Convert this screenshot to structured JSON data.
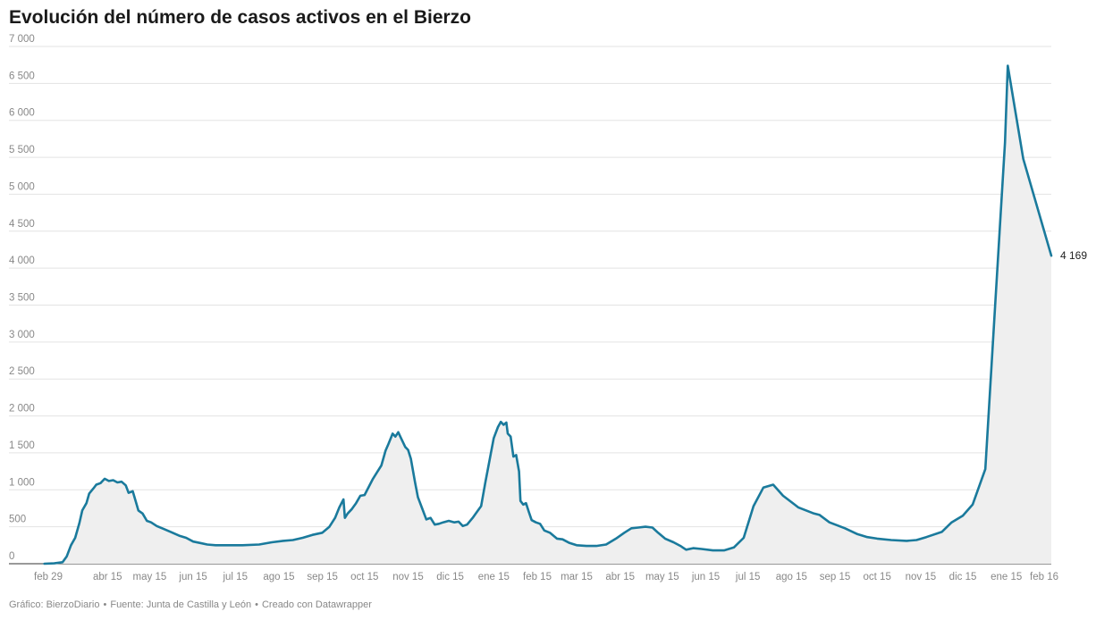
{
  "chart_data": {
    "type": "area",
    "title": "Evolución del número de casos activos en el Bierzo",
    "xlabel": "",
    "ylabel": "",
    "ylim": [
      0,
      7000
    ],
    "yticks": [
      0,
      500,
      1000,
      1500,
      2000,
      2500,
      3000,
      3500,
      4000,
      4500,
      5000,
      5500,
      6000,
      6500,
      7000
    ],
    "ytick_labels": [
      "0",
      "500",
      "1 000",
      "1 500",
      "2 000",
      "2 500",
      "3 000",
      "3 500",
      "4 000",
      "4 500",
      "5 000",
      "5 500",
      "6 000",
      "6 500",
      "7 000"
    ],
    "xlim": [
      "2020-02-29",
      "2022-02-16"
    ],
    "xticks": [
      {
        "date": "2020-02-29",
        "label": "feb 29"
      },
      {
        "date": "2020-04-15",
        "label": "abr 15"
      },
      {
        "date": "2020-05-15",
        "label": "may 15"
      },
      {
        "date": "2020-06-15",
        "label": "jun 15"
      },
      {
        "date": "2020-07-15",
        "label": "jul 15"
      },
      {
        "date": "2020-08-15",
        "label": "ago 15"
      },
      {
        "date": "2020-09-15",
        "label": "sep 15"
      },
      {
        "date": "2020-10-15",
        "label": "oct 15"
      },
      {
        "date": "2020-11-15",
        "label": "nov 15"
      },
      {
        "date": "2020-12-15",
        "label": "dic 15"
      },
      {
        "date": "2021-01-15",
        "label": "ene 15"
      },
      {
        "date": "2021-02-15",
        "label": "feb 15"
      },
      {
        "date": "2021-03-15",
        "label": "mar 15"
      },
      {
        "date": "2021-04-15",
        "label": "abr 15"
      },
      {
        "date": "2021-05-15",
        "label": "may 15"
      },
      {
        "date": "2021-06-15",
        "label": "jun 15"
      },
      {
        "date": "2021-07-15",
        "label": "jul 15"
      },
      {
        "date": "2021-08-15",
        "label": "ago 15"
      },
      {
        "date": "2021-09-15",
        "label": "sep 15"
      },
      {
        "date": "2021-10-15",
        "label": "oct 15"
      },
      {
        "date": "2021-11-15",
        "label": "nov 15"
      },
      {
        "date": "2021-12-15",
        "label": "dic 15"
      },
      {
        "date": "2022-01-15",
        "label": "ene 15"
      },
      {
        "date": "2022-02-16",
        "label": "feb 16"
      }
    ],
    "grid": true,
    "series": [
      {
        "color": "#1a7a9c",
        "fill": "#efefef",
        "end_label": "4 169",
        "points": [
          [
            "2020-03-01",
            0
          ],
          [
            "2020-03-08",
            5
          ],
          [
            "2020-03-14",
            20
          ],
          [
            "2020-03-17",
            100
          ],
          [
            "2020-03-20",
            250
          ],
          [
            "2020-03-23",
            350
          ],
          [
            "2020-03-26",
            550
          ],
          [
            "2020-03-28",
            720
          ],
          [
            "2020-03-31",
            820
          ],
          [
            "2020-04-02",
            950
          ],
          [
            "2020-04-05",
            1020
          ],
          [
            "2020-04-07",
            1070
          ],
          [
            "2020-04-10",
            1090
          ],
          [
            "2020-04-13",
            1150
          ],
          [
            "2020-04-16",
            1120
          ],
          [
            "2020-04-19",
            1130
          ],
          [
            "2020-04-22",
            1100
          ],
          [
            "2020-04-25",
            1110
          ],
          [
            "2020-04-28",
            1060
          ],
          [
            "2020-04-30",
            960
          ],
          [
            "2020-05-03",
            980
          ],
          [
            "2020-05-05",
            850
          ],
          [
            "2020-05-07",
            720
          ],
          [
            "2020-05-10",
            680
          ],
          [
            "2020-05-13",
            580
          ],
          [
            "2020-05-16",
            560
          ],
          [
            "2020-05-20",
            510
          ],
          [
            "2020-05-25",
            470
          ],
          [
            "2020-05-30",
            430
          ],
          [
            "2020-06-05",
            380
          ],
          [
            "2020-06-10",
            350
          ],
          [
            "2020-06-15",
            300
          ],
          [
            "2020-06-20",
            280
          ],
          [
            "2020-06-25",
            260
          ],
          [
            "2020-07-01",
            250
          ],
          [
            "2020-07-10",
            250
          ],
          [
            "2020-07-20",
            250
          ],
          [
            "2020-08-01",
            260
          ],
          [
            "2020-08-10",
            290
          ],
          [
            "2020-08-18",
            310
          ],
          [
            "2020-08-25",
            320
          ],
          [
            "2020-09-01",
            350
          ],
          [
            "2020-09-08",
            390
          ],
          [
            "2020-09-15",
            420
          ],
          [
            "2020-09-20",
            500
          ],
          [
            "2020-09-24",
            620
          ],
          [
            "2020-09-27",
            760
          ],
          [
            "2020-09-30",
            870
          ],
          [
            "2020-10-01",
            620
          ],
          [
            "2020-10-03",
            680
          ],
          [
            "2020-10-06",
            740
          ],
          [
            "2020-10-09",
            820
          ],
          [
            "2020-10-12",
            920
          ],
          [
            "2020-10-15",
            930
          ],
          [
            "2020-10-18",
            1040
          ],
          [
            "2020-10-21",
            1150
          ],
          [
            "2020-10-24",
            1240
          ],
          [
            "2020-10-27",
            1330
          ],
          [
            "2020-10-30",
            1530
          ],
          [
            "2020-11-01",
            1620
          ],
          [
            "2020-11-04",
            1760
          ],
          [
            "2020-11-06",
            1720
          ],
          [
            "2020-11-08",
            1780
          ],
          [
            "2020-11-10",
            1700
          ],
          [
            "2020-11-13",
            1580
          ],
          [
            "2020-11-15",
            1540
          ],
          [
            "2020-11-17",
            1420
          ],
          [
            "2020-11-20",
            1100
          ],
          [
            "2020-11-22",
            900
          ],
          [
            "2020-11-25",
            750
          ],
          [
            "2020-11-28",
            600
          ],
          [
            "2020-12-01",
            620
          ],
          [
            "2020-12-04",
            530
          ],
          [
            "2020-12-07",
            540
          ],
          [
            "2020-12-10",
            560
          ],
          [
            "2020-12-14",
            580
          ],
          [
            "2020-12-18",
            560
          ],
          [
            "2020-12-21",
            570
          ],
          [
            "2020-12-24",
            510
          ],
          [
            "2020-12-27",
            530
          ],
          [
            "2020-12-31",
            620
          ],
          [
            "2021-01-03",
            700
          ],
          [
            "2021-01-06",
            780
          ],
          [
            "2021-01-09",
            1100
          ],
          [
            "2021-01-12",
            1400
          ],
          [
            "2021-01-15",
            1700
          ],
          [
            "2021-01-18",
            1850
          ],
          [
            "2021-01-20",
            1920
          ],
          [
            "2021-01-22",
            1880
          ],
          [
            "2021-01-24",
            1910
          ],
          [
            "2021-01-25",
            1760
          ],
          [
            "2021-01-27",
            1720
          ],
          [
            "2021-01-29",
            1450
          ],
          [
            "2021-01-31",
            1470
          ],
          [
            "2021-02-02",
            1250
          ],
          [
            "2021-02-03",
            850
          ],
          [
            "2021-02-05",
            800
          ],
          [
            "2021-02-07",
            820
          ],
          [
            "2021-02-09",
            700
          ],
          [
            "2021-02-11",
            590
          ],
          [
            "2021-02-14",
            560
          ],
          [
            "2021-02-17",
            540
          ],
          [
            "2021-02-20",
            450
          ],
          [
            "2021-02-24",
            420
          ],
          [
            "2021-03-01",
            340
          ],
          [
            "2021-03-05",
            330
          ],
          [
            "2021-03-10",
            280
          ],
          [
            "2021-03-15",
            250
          ],
          [
            "2021-03-22",
            240
          ],
          [
            "2021-03-29",
            240
          ],
          [
            "2021-04-05",
            260
          ],
          [
            "2021-04-12",
            340
          ],
          [
            "2021-04-18",
            420
          ],
          [
            "2021-04-23",
            480
          ],
          [
            "2021-04-28",
            490
          ],
          [
            "2021-05-03",
            500
          ],
          [
            "2021-05-08",
            490
          ],
          [
            "2021-05-12",
            420
          ],
          [
            "2021-05-17",
            340
          ],
          [
            "2021-05-23",
            290
          ],
          [
            "2021-05-28",
            240
          ],
          [
            "2021-06-01",
            190
          ],
          [
            "2021-06-06",
            210
          ],
          [
            "2021-06-12",
            200
          ],
          [
            "2021-06-20",
            180
          ],
          [
            "2021-06-28",
            180
          ],
          [
            "2021-07-05",
            220
          ],
          [
            "2021-07-12",
            350
          ],
          [
            "2021-07-19",
            780
          ],
          [
            "2021-07-26",
            1030
          ],
          [
            "2021-08-02",
            1070
          ],
          [
            "2021-08-09",
            920
          ],
          [
            "2021-08-20",
            760
          ],
          [
            "2021-08-31",
            680
          ],
          [
            "2021-09-04",
            660
          ],
          [
            "2021-09-11",
            560
          ],
          [
            "2021-09-22",
            480
          ],
          [
            "2021-10-01",
            400
          ],
          [
            "2021-10-08",
            360
          ],
          [
            "2021-10-15",
            340
          ],
          [
            "2021-10-25",
            320
          ],
          [
            "2021-11-05",
            310
          ],
          [
            "2021-11-12",
            320
          ],
          [
            "2021-11-19",
            360
          ],
          [
            "2021-11-30",
            430
          ],
          [
            "2021-12-07",
            560
          ],
          [
            "2021-12-15",
            650
          ],
          [
            "2021-12-22",
            800
          ],
          [
            "2021-12-31",
            1280
          ],
          [
            "2022-01-07",
            3500
          ],
          [
            "2022-01-14",
            5700
          ],
          [
            "2022-01-16",
            6740
          ],
          [
            "2022-01-27",
            5480
          ],
          [
            "2022-02-16",
            4169
          ]
        ]
      }
    ]
  },
  "footer": {
    "credit": "Gráfico: BierzoDiario",
    "source": "Fuente: Junta de Castilla y León",
    "made_with": "Creado con Datawrapper",
    "separator": "•"
  }
}
